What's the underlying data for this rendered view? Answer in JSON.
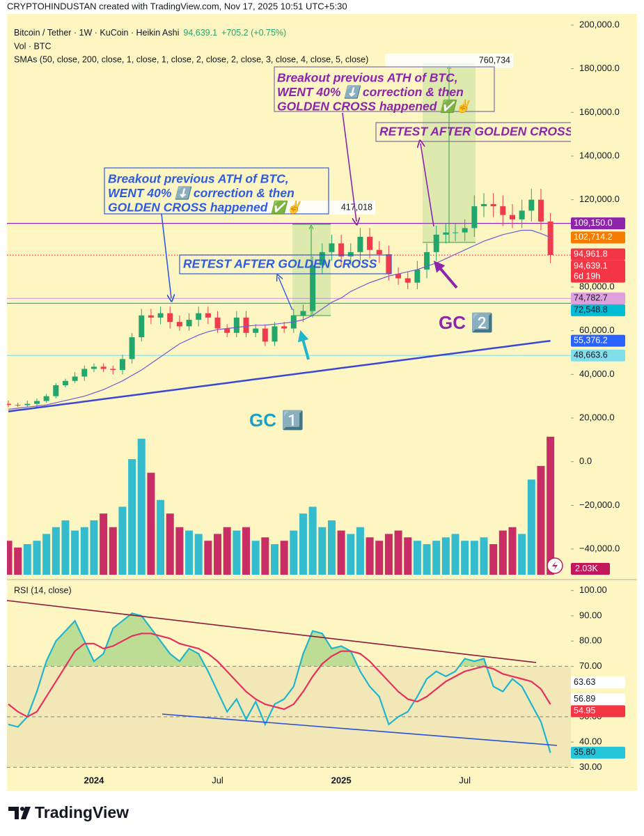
{
  "header": {
    "credit": "CRYPTOHINDUSTAN created with TradingView.com, Nov 17, 2025 10:51 UTC+5:30",
    "symbol": "Bitcoin / Tether · 1W · KuCoin · Heikin Ashi",
    "last": "94,639.1",
    "change": "+705.2 (+0.75%)",
    "volume_label": "Vol · BTC",
    "sma_label": "SMAs (50, close, 200, close, 1, close, 1, close, 2, close, 2, close, 3, close, 4, close, 5, close)"
  },
  "annotations": {
    "gc1_note": [
      "Breakout previous ATH of BTC,",
      "WENT 40% ⬇️ correction & then",
      "GOLDEN CROSS happened ✅✌️"
    ],
    "gc1_retest": "RETEST AFTER GOLDEN CROSS",
    "gc2_note": [
      "Breakout previous ATH of BTC,",
      "WENT 40% ⬇️ correction & then",
      "GOLDEN CROSS happened ✅✌️"
    ],
    "gc2_retest": "RETEST AFTER GOLDEN CROSS",
    "gc1": "GC 1️⃣",
    "gc2": "GC 2️⃣",
    "measure1": "417,018",
    "measure2": "760,734"
  },
  "footer": {
    "brand": "TradingView"
  },
  "chart_data": [
    {
      "type": "candlestick",
      "up_color": "#22a66b",
      "down_color": "#ef3b4d",
      "open": [
        26500,
        26000,
        25900,
        26500,
        27800,
        30000,
        35000,
        37000,
        39000,
        42500,
        43500,
        42500,
        42000,
        47000,
        57000,
        67000,
        66000,
        68000,
        64000,
        62000,
        65000,
        68000,
        66000,
        61000,
        59000,
        66000,
        59000,
        61000,
        55000,
        62000,
        61000,
        67000,
        69000,
        90000,
        96000,
        100000,
        94000,
        96000,
        103000,
        97000,
        95000,
        86000,
        84000,
        82000,
        88000,
        96000,
        104000,
        105000,
        105000,
        107000,
        117000,
        118000,
        117000,
        113000,
        111000,
        115000,
        120000,
        110000
      ],
      "high": [
        28000,
        27000,
        28000,
        29000,
        31000,
        36000,
        38000,
        41000,
        44000,
        45000,
        45000,
        44000,
        49000,
        59000,
        70000,
        70000,
        71000,
        71000,
        67000,
        68000,
        71000,
        71000,
        69000,
        63000,
        69000,
        69000,
        63000,
        63000,
        64000,
        64000,
        70000,
        72000,
        94000,
        100000,
        104000,
        104000,
        100000,
        107000,
        107000,
        101000,
        99000,
        89000,
        87000,
        92000,
        100000,
        108000,
        109000,
        109000,
        111000,
        122000,
        123000,
        123000,
        122000,
        118000,
        120000,
        125000,
        125000,
        114000
      ],
      "low": [
        25000,
        25000,
        25000,
        25000,
        27000,
        29000,
        34000,
        36000,
        37000,
        41000,
        41000,
        40000,
        40000,
        45000,
        55000,
        63000,
        63000,
        61000,
        60000,
        60000,
        62000,
        63000,
        59000,
        57000,
        57000,
        57000,
        57000,
        53000,
        53000,
        59000,
        59000,
        64000,
        66000,
        86000,
        92000,
        90000,
        90000,
        92000,
        93000,
        91000,
        83000,
        81000,
        79000,
        79000,
        84000,
        92000,
        100000,
        101000,
        101000,
        103000,
        112000,
        112000,
        108000,
        107000,
        107000,
        110000,
        106000,
        91000
      ],
      "close": [
        26000,
        25900,
        26500,
        27800,
        30000,
        35000,
        37000,
        39000,
        42500,
        43500,
        42500,
        42000,
        47000,
        57000,
        67000,
        66000,
        68000,
        64000,
        62000,
        65000,
        68000,
        66000,
        61000,
        59000,
        66000,
        59000,
        61000,
        55000,
        62000,
        61000,
        67000,
        69000,
        90000,
        96000,
        100000,
        94000,
        96000,
        103000,
        97000,
        95000,
        86000,
        84000,
        82000,
        88000,
        96000,
        104000,
        105000,
        105000,
        107000,
        117000,
        118000,
        117000,
        113000,
        111000,
        115000,
        120000,
        110000,
        94639.1
      ],
      "overlays": [
        {
          "color": "#6f5bd3",
          "width": 1.2,
          "values": [
            24000,
            24500,
            25000,
            25500,
            26000,
            27000,
            28000,
            29000,
            30000,
            31500,
            33000,
            35000,
            37000,
            39500,
            42000,
            45000,
            48000,
            51000,
            54000,
            56000,
            58000,
            59500,
            60500,
            61000,
            61500,
            62000,
            62500,
            62500,
            63000,
            63500,
            64000,
            65000,
            67000,
            70000,
            73000,
            75000,
            78000,
            80000,
            82000,
            83500,
            85000,
            86000,
            87000,
            88000,
            89500,
            91000,
            93000,
            95000,
            97000,
            99000,
            101000,
            102500,
            104000,
            105000,
            106000,
            106000,
            104500,
            102714.2
          ]
        },
        {
          "color": "#3a47d5",
          "width": 2.5,
          "values": [
            23000,
            23568,
            24136,
            24704,
            25272,
            25840,
            26408,
            26976,
            27544,
            28112,
            28680,
            29248,
            29816,
            30384,
            30952,
            31520,
            32088,
            32656,
            33224,
            33792,
            34360,
            34928,
            35496,
            36064,
            36632,
            37200,
            37768,
            38336,
            38904,
            39472,
            40040,
            40608,
            41176,
            41744,
            42312,
            42880,
            43448,
            44016,
            44584,
            45152,
            45720,
            46288,
            46856,
            47424,
            47992,
            48560,
            49128,
            49696,
            50264,
            50832,
            51400,
            51968,
            52536,
            53104,
            53672,
            54240,
            54808,
            55376.2
          ]
        }
      ],
      "ylim": [
        -51800,
        205100
      ],
      "yticks": [
        {
          "value": 200000,
          "label": "200,000.0"
        },
        {
          "value": 180000,
          "label": "180,000.0"
        },
        {
          "value": 160000,
          "label": "160,000.0"
        },
        {
          "value": 140000,
          "label": "140,000.0"
        },
        {
          "value": 120000,
          "label": "120,000.0"
        },
        {
          "value": 80000,
          "label": "80,000.0"
        },
        {
          "value": 60000,
          "label": "60,000.0"
        },
        {
          "value": 40000,
          "label": "40,000.0"
        },
        {
          "value": 20000,
          "label": "20,000.0"
        },
        {
          "value": 0,
          "label": "0.0"
        },
        {
          "value": -20000,
          "label": "−20,000.0"
        },
        {
          "value": -40000,
          "label": "−40,000.0"
        }
      ],
      "price_tags": [
        {
          "value": 109150.0,
          "label": "109,150.0",
          "color": "#8e24aa",
          "text_color": "#ffffff",
          "line": "solid"
        },
        {
          "value": 102714.2,
          "label": "102,714.2",
          "color": "#f57c00",
          "text_color": "#ffffff"
        },
        {
          "value": 94961.8,
          "label": "94,961.8",
          "color": "#f23645",
          "text_color": "#ffffff"
        },
        {
          "value": 94639.1,
          "label": "94,639.1",
          "sub": "6d 19h",
          "color": "#f23645",
          "text_color": "#ffffff",
          "line": "dotted"
        },
        {
          "value": 74782.7,
          "label": "74,782.7",
          "color": "#dda0dd",
          "text_color": "#131722",
          "line": "solid"
        },
        {
          "value": 72548.8,
          "label": "72,548.8",
          "color": "#00bcd4",
          "text_color": "#131722",
          "line": "solid"
        },
        {
          "value": 55376.2,
          "label": "55,376.2",
          "color": "#2962ff",
          "text_color": "#ffffff"
        },
        {
          "value": 48663.6,
          "label": "48,663.6",
          "color": "#80deea",
          "text_color": "#131722",
          "line": "solid"
        }
      ]
    },
    {
      "type": "bar",
      "up_color": "#1fb5cf",
      "down_color": "#c2185b",
      "values": [
        500,
        400,
        450,
        500,
        600,
        700,
        800,
        650,
        700,
        800,
        900,
        700,
        1000,
        1700,
        2000,
        1500,
        1100,
        900,
        700,
        650,
        600,
        500,
        600,
        700,
        650,
        700,
        500,
        550,
        450,
        500,
        650,
        900,
        1000,
        700,
        800,
        650,
        600,
        700,
        550,
        500,
        600,
        650,
        550,
        500,
        450,
        500,
        550,
        600,
        500,
        500,
        550,
        450,
        650,
        700,
        600,
        1400,
        1600,
        2030
      ],
      "ylim": [
        0,
        2100
      ],
      "last_tag": {
        "value": 2030,
        "label": "2.03K",
        "color": "#c2185b",
        "text_color": "#ffffff"
      }
    },
    {
      "type": "line",
      "title": "RSI (14, close)",
      "categories": [
        null,
        null,
        null,
        null,
        null,
        null,
        null,
        null,
        null,
        "2024",
        null,
        null,
        null,
        null,
        null,
        null,
        null,
        null,
        null,
        null,
        null,
        null,
        "Jul",
        null,
        null,
        null,
        null,
        null,
        null,
        null,
        null,
        null,
        null,
        null,
        null,
        "2025",
        null,
        null,
        null,
        null,
        null,
        null,
        null,
        null,
        null,
        null,
        null,
        null,
        "Jul",
        null,
        null,
        null,
        null,
        null,
        null,
        null,
        null,
        null
      ],
      "series": [
        {
          "color": "#1fb5cf",
          "values": [
            47,
            46,
            50,
            60,
            72,
            80,
            84,
            88,
            80,
            72,
            75,
            85,
            88,
            91,
            90,
            85,
            80,
            75,
            72,
            77,
            75,
            68,
            60,
            52,
            57,
            49,
            56,
            47,
            55,
            57,
            62,
            75,
            84,
            83,
            77,
            78,
            76,
            68,
            62,
            58,
            47,
            50,
            52,
            58,
            65,
            68,
            66,
            68,
            73,
            72,
            73,
            62,
            60,
            65,
            62,
            55,
            48,
            35.8
          ]
        },
        {
          "color": "#e5305f",
          "values": [
            55,
            52,
            50,
            52,
            58,
            64,
            70,
            76,
            79,
            79,
            77,
            78,
            80,
            82,
            83,
            83,
            82,
            81,
            79,
            78,
            77,
            75,
            72,
            68,
            64,
            60,
            57,
            55,
            54,
            53,
            55,
            60,
            66,
            71,
            74,
            76,
            76,
            75,
            72,
            68,
            64,
            60,
            57,
            56,
            58,
            61,
            64,
            66,
            68,
            69,
            70,
            69,
            67,
            66,
            65,
            64,
            61,
            54.95
          ]
        }
      ],
      "overbought_fill": "#6fbf5a",
      "levels": {
        "upper": 70,
        "middle": 50,
        "lower": 30
      },
      "ylim": [
        29,
        103.5
      ],
      "yticks": [
        {
          "value": 100,
          "label": "100.00"
        },
        {
          "value": 90,
          "label": "90.00"
        },
        {
          "value": 80,
          "label": "80.00"
        },
        {
          "value": 70,
          "label": "70.00"
        },
        {
          "value": 50,
          "label": "50.00"
        },
        {
          "value": 40,
          "label": "40.00"
        },
        {
          "value": 30,
          "label": "30.00"
        }
      ],
      "tags": [
        {
          "value": 63.63,
          "label": "63.63",
          "color": "#ffffff",
          "text_color": "#131722"
        },
        {
          "value": 56.89,
          "label": "56.89",
          "color": "#ffffff",
          "text_color": "#131722"
        },
        {
          "value": 54.95,
          "label": "54.95",
          "color": "#f23645",
          "text_color": "#ffffff"
        },
        {
          "value": 35.8,
          "label": "35.80",
          "color": "#26c6da",
          "text_color": "#131722"
        }
      ]
    }
  ]
}
